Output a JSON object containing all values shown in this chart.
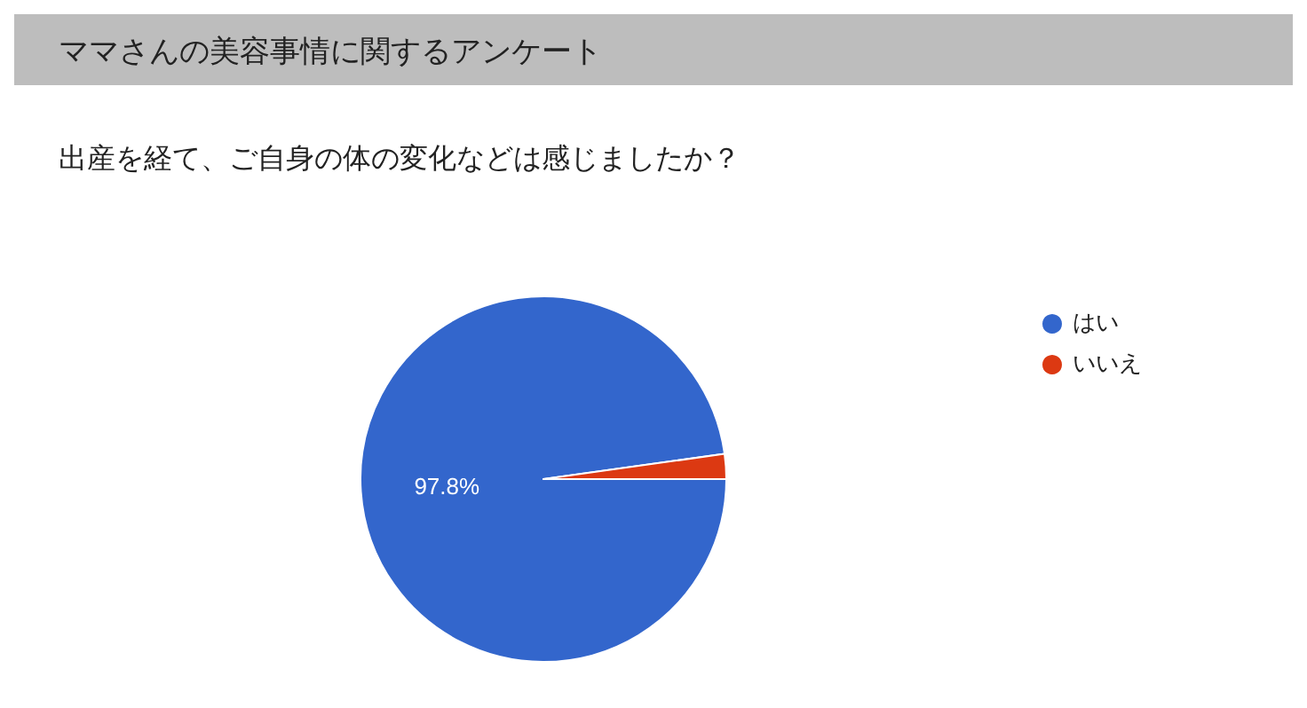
{
  "chart_data": {
    "type": "pie",
    "title": "ママさんの美容事情に関するアンケート",
    "subtitle": "出産を経て、ご自身の体の変化などは感じましたか？",
    "categories": [
      "はい",
      "いいえ"
    ],
    "values": [
      97.8,
      2.2
    ],
    "colors": [
      "#3366cc",
      "#dc3912"
    ],
    "value_labels": [
      "97.8%",
      null
    ],
    "legend": "right"
  }
}
